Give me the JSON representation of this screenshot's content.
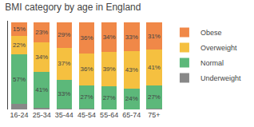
{
  "chart_data": {
    "type": "bar",
    "title": "BMI category by age in England",
    "categories": [
      "16-24",
      "25-34",
      "35-44",
      "45-54",
      "55-64",
      "65-74",
      "75+"
    ],
    "series": [
      {
        "name": "Underweight",
        "color": "#888888",
        "values": [
          6,
          2,
          1,
          1,
          0,
          0,
          1
        ]
      },
      {
        "name": "Normal",
        "color": "#5cb87a",
        "values": [
          57,
          41,
          33,
          27,
          27,
          24,
          27
        ],
        "value_labels": [
          "57%",
          "41%",
          "33%",
          "27%",
          "27%",
          "24%",
          "27%"
        ]
      },
      {
        "name": "Overweight",
        "color": "#f5c040",
        "values": [
          22,
          34,
          37,
          36,
          39,
          43,
          41
        ],
        "value_labels": [
          "22%",
          "34%",
          "37%",
          "36%",
          "39%",
          "43%",
          "41%"
        ]
      },
      {
        "name": "Obese",
        "color": "#f08848",
        "values": [
          15,
          23,
          29,
          36,
          34,
          33,
          31
        ],
        "value_labels": [
          "15%",
          "23%",
          "29%",
          "36%",
          "34%",
          "33%",
          "31%"
        ]
      }
    ],
    "stacked": true,
    "ylim": [
      0,
      102
    ],
    "yticks": [],
    "tick_labels": "x",
    "grid": false,
    "legend": "right"
  }
}
